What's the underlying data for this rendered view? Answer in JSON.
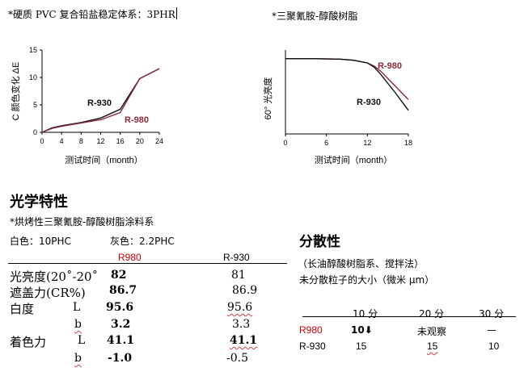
{
  "top": {
    "left_heading": "*硬质 PVC 复合铅盐稳定体系：3PHR",
    "right_heading": "*三聚氰胺-醇酸树脂"
  },
  "chart_data": [
    {
      "type": "line",
      "ylabel": "C 颜色变化 ΔE",
      "xlabel": "测试时间（month）",
      "x_ticks": [
        "0",
        "4",
        "8",
        "12",
        "16",
        "20",
        "24"
      ],
      "y_ticks": [
        "0",
        "5",
        "10",
        "15"
      ],
      "xlim": [
        0,
        24
      ],
      "ylim": [
        0,
        15
      ],
      "x": [
        0,
        2,
        4,
        8,
        12,
        16,
        20,
        24
      ],
      "series": [
        {
          "name": "R-930",
          "color": "#111111",
          "values": [
            0,
            0.8,
            1.2,
            1.8,
            2.6,
            4.2,
            9.8,
            11.6
          ]
        },
        {
          "name": "R-980",
          "color": "#8b2a3a",
          "values": [
            0,
            0.7,
            1.1,
            1.7,
            2.3,
            3.6,
            9.8,
            11.6
          ]
        }
      ],
      "grid": false
    },
    {
      "type": "line",
      "ylabel": "60° 光亮度",
      "xlabel": "测试时间（month）",
      "x_ticks": [
        "0",
        "6",
        "12",
        "18"
      ],
      "xlim": [
        0,
        18
      ],
      "x": [
        0,
        4,
        8,
        10,
        12,
        13,
        14,
        16,
        18
      ],
      "series": [
        {
          "name": "R-980",
          "color": "#8b2a3a",
          "values": [
            100,
            100,
            99.5,
            98.5,
            96,
            93,
            88,
            75,
            62
          ]
        },
        {
          "name": "R-930",
          "color": "#111111",
          "values": [
            100,
            100,
            99.5,
            98.5,
            96,
            92,
            85,
            69,
            52
          ]
        }
      ],
      "grid": false
    }
  ],
  "optical": {
    "heading": "光学特性",
    "subheading": "*烘烤性三聚氰胺-醇酸树脂涂料系",
    "white_label": "白色：10PHC",
    "gray_label": "灰色：2.2PHC",
    "col1": "R980",
    "col2": "R-930",
    "rows": [
      {
        "label": "光亮度(20˚-20˚",
        "sub": "",
        "v1": "82",
        "v2": "81"
      },
      {
        "label": "遮盖力(CR%)",
        "sub": "",
        "v1": "86.7",
        "v2": "86.9"
      },
      {
        "label": "白度",
        "sub": "L",
        "v1": "95.6",
        "v2": "95.6"
      },
      {
        "label": "",
        "sub": "b",
        "v1": "3.2",
        "v2": "3.3"
      },
      {
        "label": "着色力",
        "sub": "L",
        "v1": "41.1",
        "v2": "41.1"
      },
      {
        "label": "",
        "sub": "b",
        "v1": "-1.0",
        "v2": "-0.5"
      }
    ]
  },
  "dispersion": {
    "heading": "分散性",
    "line1": "（长油醇酸树脂系、搅拌法）",
    "line2": "未分散粒子的大小（微米 μm）",
    "headers": [
      "10 分",
      "20 分",
      "30 分"
    ],
    "rows": [
      {
        "name": "R980",
        "values": [
          "10⬇",
          "未观察",
          "—"
        ]
      },
      {
        "name": "R-930",
        "values": [
          "15",
          "15",
          "10"
        ]
      }
    ]
  }
}
